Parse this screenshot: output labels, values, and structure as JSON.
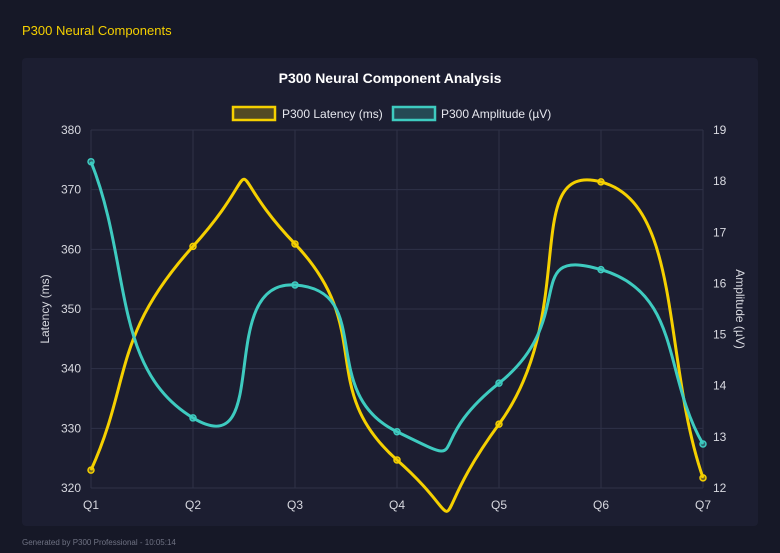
{
  "header": {
    "title": "P300 Neural Components"
  },
  "footer": {
    "text": "Generated by P300 Professional - 10:05:14"
  },
  "chart_data": {
    "type": "line",
    "title": "P300 Neural Component Analysis",
    "categories": [
      "Q1",
      "Q2",
      "Q3",
      "Q4",
      "Q5",
      "Q6",
      "Q7"
    ],
    "series": [
      {
        "name": "P300 Latency (ms)",
        "axis": "left",
        "color": "#f5d000",
        "values": [
          323.0,
          360.5,
          360.9,
          324.7,
          330.7,
          371.3,
          321.7
        ]
      },
      {
        "name": "P300 Amplitude (µV)",
        "axis": "right",
        "color": "#3ecbc0",
        "values": [
          18.38,
          13.37,
          15.97,
          13.1,
          14.05,
          16.27,
          12.86
        ]
      }
    ],
    "ylabel": "Latency (ms)",
    "y2label": "Amplitude (µV)",
    "ylim": [
      320,
      380
    ],
    "y2lim": [
      12,
      19
    ],
    "yticks": [
      "320",
      "330",
      "340",
      "350",
      "360",
      "370",
      "380"
    ],
    "y2ticks": [
      "12",
      "13",
      "14",
      "15",
      "16",
      "17",
      "18",
      "19"
    ],
    "grid": true,
    "legend": "top",
    "smooth": true
  }
}
